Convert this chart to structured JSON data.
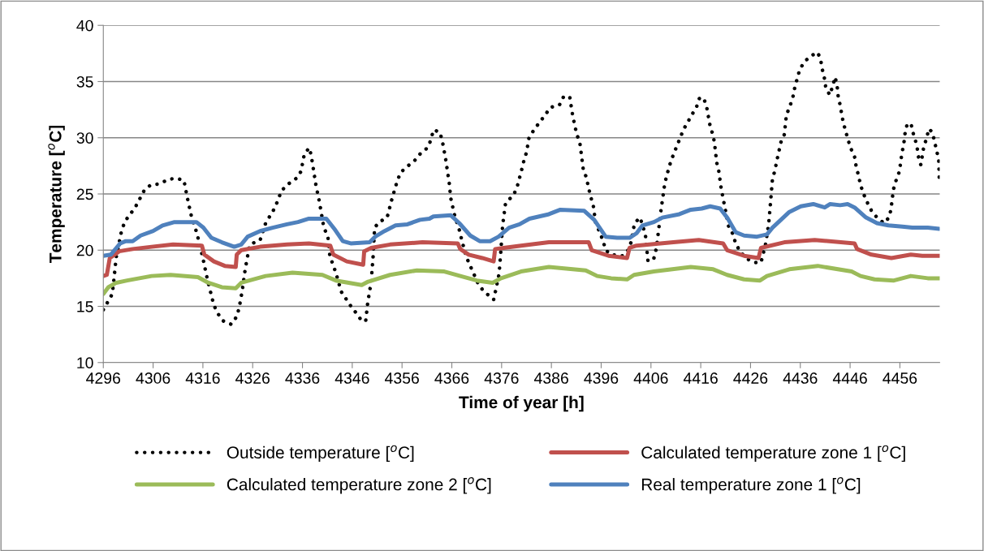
{
  "chart_data": {
    "type": "line",
    "xlabel": "Time of year [h]",
    "ylabel": "Temperature [$^{o}$C]",
    "xlim": [
      4296,
      4464
    ],
    "xticks": [
      4296,
      4306,
      4316,
      4326,
      4336,
      4346,
      4356,
      4366,
      4376,
      4386,
      4396,
      4406,
      4416,
      4426,
      4436,
      4446,
      4456
    ],
    "ylim": [
      10,
      40
    ],
    "yticks": [
      10,
      15,
      20,
      25,
      30,
      35,
      40
    ],
    "grid": "y",
    "legend": "bottom",
    "marker": "none",
    "series": [
      {
        "name": "Outside temperature [$^{o}$C]",
        "color": "#000000",
        "line_style": "dotted",
        "x": [
          4296,
          4297.8,
          4298.2,
          4298.6,
          4299.7,
          4300.4,
          4302.4,
          4304.2,
          4305.5,
          4307.3,
          4309.1,
          4310.7,
          4312.2,
          4312.9,
          4313.7,
          4314.8,
          4316.0,
          4316.8,
          4318.2,
          4319.1,
          4320.1,
          4321.7,
          4322.8,
          4323.3,
          4323.9,
          4324.5,
          4325.4,
          4327.5,
          4328.6,
          4330.5,
          4331.8,
          4333.2,
          4334.8,
          4335.7,
          4336.4,
          4337.4,
          4337.8,
          4338.7,
          4339.4,
          4340.3,
          4341.1,
          4341.5,
          4342.7,
          4343.8,
          4345.9,
          4347.0,
          4347.9,
          4348.7,
          4349.1,
          4349.8,
          4350.2,
          4350.5,
          4351.4,
          4353.0,
          4354.0,
          4355.0,
          4355.7,
          4356.9,
          4358.4,
          4359.7,
          4361.1,
          4361.8,
          4362.3,
          4363.6,
          4364.1,
          4364.8,
          4365.3,
          4365.6,
          4365.7,
          4366.5,
          4367.5,
          4368.0,
          4368.9,
          4369.8,
          4371.3,
          4372.3,
          4373.6,
          4374.4,
          4374.8,
          4375.5,
          4375.8,
          4376.2,
          4376.8,
          4378.4,
          4379.1,
          4380.0,
          4380.5,
          4381.0,
          4381.5,
          4382.5,
          4383.5,
          4384.7,
          4385.8,
          4387.6,
          4388.5,
          4389.7,
          4390.3,
          4391.1,
          4391.7,
          4392.4,
          4393.0,
          4393.8,
          4394.4,
          4394.9,
          4395.8,
          4396.4,
          4396.9,
          4398.0,
          4400.3,
          4401.4,
          4402.0,
          4402.7,
          4403.8,
          4404.4,
          4404.9,
          4405.4,
          4406.6,
          4407.1,
          4408.0,
          4408.8,
          4409.7,
          4410.5,
          4411.7,
          4412.5,
          4413.4,
          4414.3,
          4415.2,
          4415.8,
          4416.7,
          4417.2,
          4417.9,
          4418.5,
          4418.8,
          4419.2,
          4419.6,
          4420.1,
          4420.8,
          4421.6,
          4422.5,
          4423.0,
          4424.0,
          4425.4,
          4426.9,
          4428.1,
          4429.0,
          4429.6,
          4429.8,
          4430.1,
          4430.4,
          4430.9,
          4431.3,
          4432.1,
          4432.8,
          4433.2,
          4433.9,
          4434.5,
          4434.9,
          4435.4,
          4435.9,
          4436.9,
          4438.2,
          4439.5,
          4440.1,
          4440.4,
          4440.8,
          4441.1,
          4441.9,
          4442.5,
          4443.0,
          4443.4,
          4443.6,
          4444.0,
          4444.6,
          4445.1,
          4445.6,
          4446.2,
          4446.9,
          4447.2,
          4447.7,
          4448.1,
          4448.7,
          4449.5,
          4450.3,
          4451.4,
          4452.8,
          4453.8,
          4454.2,
          4454.7,
          4455.3,
          4455.9,
          4456.4,
          4456.8,
          4457.0,
          4457.4,
          4458.2,
          4458.6,
          4459.1,
          4459.5,
          4459.8,
          4460.2,
          4460.5,
          4460.8,
          4461.4,
          4461.8,
          4462.5,
          4462.9,
          4463.4,
          4463.8,
          4463.9
        ],
        "values": [
          14.7,
          16.1,
          17.7,
          19.4,
          21.8,
          22.6,
          23.8,
          25.3,
          25.8,
          25.9,
          26.3,
          26.4,
          26.2,
          24.6,
          23.0,
          21.5,
          19.3,
          17.6,
          15.1,
          14.3,
          13.7,
          13.4,
          14.1,
          14.9,
          16.4,
          18.3,
          20.5,
          20.9,
          22.4,
          23.8,
          25.3,
          25.9,
          26.4,
          27.0,
          28.6,
          29.1,
          28.3,
          25.8,
          24.3,
          22.0,
          21.2,
          19.5,
          18.0,
          16.3,
          14.9,
          14.3,
          13.7,
          13.7,
          15.3,
          17.2,
          19.5,
          22.0,
          22.5,
          22.9,
          24.6,
          26.1,
          26.9,
          27.4,
          27.9,
          28.6,
          29.1,
          29.8,
          30.7,
          30.5,
          29.7,
          28.0,
          26.5,
          25.6,
          24.8,
          23.2,
          21.8,
          20.9,
          19.4,
          18.5,
          17.0,
          16.4,
          15.9,
          15.6,
          16.4,
          17.9,
          19.6,
          22.2,
          24.2,
          24.9,
          25.6,
          27.1,
          28.0,
          28.7,
          30.0,
          30.7,
          31.3,
          32.0,
          32.7,
          32.9,
          33.7,
          33.6,
          31.9,
          30.3,
          29.6,
          27.2,
          26.5,
          24.9,
          24.0,
          22.4,
          21.5,
          20.8,
          20.0,
          19.6,
          19.5,
          20.0,
          20.7,
          22.4,
          22.9,
          22.1,
          21.3,
          19.0,
          19.3,
          20.2,
          23.5,
          26.0,
          27.5,
          28.5,
          29.8,
          30.7,
          31.4,
          32.1,
          32.8,
          33.6,
          33.4,
          32.7,
          31.0,
          30.2,
          29.4,
          27.8,
          27.1,
          25.5,
          23.9,
          22.1,
          21.4,
          20.6,
          19.8,
          19.2,
          18.9,
          18.9,
          20.5,
          22.2,
          23.1,
          24.7,
          26.3,
          27.1,
          28.0,
          29.6,
          30.3,
          32.0,
          32.8,
          33.6,
          34.5,
          35.3,
          36.1,
          36.8,
          37.3,
          37.6,
          36.9,
          36.1,
          35.4,
          34.5,
          33.8,
          34.6,
          35.4,
          34.6,
          33.7,
          32.9,
          31.4,
          30.6,
          29.8,
          29.0,
          28.3,
          27.5,
          26.6,
          25.8,
          25.0,
          24.2,
          23.5,
          22.9,
          22.4,
          22.9,
          23.6,
          25.4,
          26.3,
          27.0,
          28.6,
          29.5,
          30.3,
          31.1,
          31.3,
          30.5,
          29.8,
          29.0,
          28.1,
          27.6,
          28.4,
          29.2,
          30.0,
          30.8,
          30.5,
          29.8,
          28.8,
          28.1,
          26.4
        ]
      },
      {
        "name": "Calculated temperature zone 1 [$^{o}$C]",
        "color": "#c0504d",
        "line_style": "solid",
        "x": [
          4296,
          4296.7,
          4297.3,
          4299.2,
          4301.9,
          4305.7,
          4310.0,
          4315.8,
          4316.3,
          4318.2,
          4320.4,
          4322.6,
          4322.8,
          4323.7,
          4327.5,
          4332.9,
          4337.3,
          4341.6,
          4342.2,
          4344.9,
          4348.2,
          4348.4,
          4349.8,
          4353.6,
          4360.1,
          4367.2,
          4367.7,
          4369.4,
          4372.1,
          4374.4,
          4374.7,
          4376.4,
          4379.9,
          4385.5,
          4393.5,
          4394.1,
          4397.5,
          4401.2,
          4401.7,
          4403.1,
          4410.5,
          4415.6,
          4420.5,
          4421.3,
          4424.7,
          4427.6,
          4428.1,
          4432.8,
          4438.9,
          4446.9,
          4447.4,
          4450.3,
          4454.3,
          4458.2,
          4460.5,
          4463.9
        ],
        "values": [
          17.7,
          17.8,
          19.3,
          19.9,
          20.1,
          20.3,
          20.5,
          20.4,
          19.6,
          19.0,
          18.6,
          18.5,
          19.6,
          20.0,
          20.3,
          20.5,
          20.6,
          20.4,
          19.6,
          19.0,
          18.7,
          19.9,
          20.2,
          20.5,
          20.7,
          20.6,
          20.1,
          19.6,
          19.3,
          19.0,
          20.1,
          20.2,
          20.4,
          20.7,
          20.7,
          20.0,
          19.5,
          19.3,
          20.2,
          20.4,
          20.7,
          20.9,
          20.6,
          20.0,
          19.5,
          19.3,
          20.2,
          20.7,
          20.9,
          20.6,
          20.1,
          19.6,
          19.3,
          19.6,
          19.5,
          19.5
        ]
      },
      {
        "name": "Calculated temperature zone 2 [$^{o}$C]",
        "color": "#9bbb59",
        "line_style": "solid",
        "x": [
          4296,
          4297.0,
          4298.6,
          4300.8,
          4305.7,
          4309.5,
          4315.0,
          4317.1,
          4319.8,
          4322.6,
          4323.7,
          4328.6,
          4334.0,
          4340.0,
          4342.7,
          4347.9,
          4349.2,
          4353.6,
          4359.0,
          4364.5,
          4367.7,
          4371.0,
          4374.2,
          4375.9,
          4379.9,
          4385.5,
          4392.9,
          4395.2,
          4398.0,
          4401.2,
          4402.6,
          4406.6,
          4414.0,
          4418.5,
          4421.3,
          4424.7,
          4427.9,
          4429.3,
          4433.8,
          4439.5,
          4446.3,
          4448.1,
          4450.9,
          4454.8,
          4458.2,
          4461.6,
          4463.9
        ],
        "values": [
          16.1,
          16.7,
          17.1,
          17.3,
          17.7,
          17.8,
          17.6,
          17.1,
          16.7,
          16.6,
          17.1,
          17.7,
          18.0,
          17.8,
          17.3,
          16.9,
          17.2,
          17.8,
          18.2,
          18.1,
          17.7,
          17.3,
          17.1,
          17.5,
          18.1,
          18.5,
          18.2,
          17.7,
          17.5,
          17.4,
          17.8,
          18.1,
          18.5,
          18.3,
          17.8,
          17.4,
          17.3,
          17.7,
          18.3,
          18.6,
          18.1,
          17.7,
          17.4,
          17.3,
          17.7,
          17.5,
          17.5
        ]
      },
      {
        "name": "Real temperature zone 1 [$^{o}$C]",
        "color": "#4f81bd",
        "line_style": "solid",
        "x": [
          4296,
          4297.5,
          4299.4,
          4300.5,
          4301.9,
          4303.5,
          4306.0,
          4307.9,
          4310.3,
          4314.7,
          4316.1,
          4317.7,
          4319.8,
          4322.3,
          4323.7,
          4325.0,
          4327.5,
          4330.0,
          4332.9,
          4335.1,
          4337.3,
          4340.8,
          4342.4,
          4344.1,
          4345.7,
          4349.5,
          4350.6,
          4352.5,
          4354.7,
          4357.1,
          4359.6,
          4361.5,
          4362.3,
          4365.8,
          4367.5,
          4369.7,
          4371.6,
          4373.7,
          4375.4,
          4377.5,
          4379.6,
          4381.6,
          4385.5,
          4387.8,
          4392.6,
          4394.6,
          4396.9,
          4399.2,
          4401.7,
          4403.1,
          4404.3,
          4406.6,
          4408.3,
          4411.7,
          4414.0,
          4416.2,
          4417.9,
          4419.9,
          4421.3,
          4423.0,
          4424.7,
          4427.3,
          4429.3,
          4430.4,
          4433.8,
          4436.1,
          4438.6,
          4440.9,
          4442.0,
          4444.0,
          4445.5,
          4446.9,
          4449.2,
          4451.4,
          4453.7,
          4456.5,
          4458.5,
          4461.6,
          4463.9
        ],
        "values": [
          19.5,
          19.6,
          20.6,
          20.8,
          20.8,
          21.3,
          21.7,
          22.2,
          22.5,
          22.5,
          22.0,
          21.1,
          20.7,
          20.3,
          20.5,
          21.2,
          21.7,
          22.0,
          22.3,
          22.5,
          22.8,
          22.8,
          21.9,
          20.8,
          20.6,
          20.7,
          21.2,
          21.7,
          22.2,
          22.3,
          22.7,
          22.8,
          23.0,
          23.1,
          22.4,
          21.3,
          20.8,
          20.8,
          21.2,
          22.0,
          22.3,
          22.8,
          23.2,
          23.6,
          23.5,
          22.7,
          21.2,
          21.1,
          21.1,
          21.5,
          22.2,
          22.5,
          22.9,
          23.2,
          23.6,
          23.7,
          23.9,
          23.7,
          22.9,
          21.6,
          21.3,
          21.2,
          21.4,
          22.0,
          23.4,
          23.9,
          24.1,
          23.8,
          24.1,
          24.0,
          24.1,
          23.8,
          22.9,
          22.4,
          22.2,
          22.1,
          22.0,
          22.0,
          21.9
        ]
      }
    ]
  }
}
